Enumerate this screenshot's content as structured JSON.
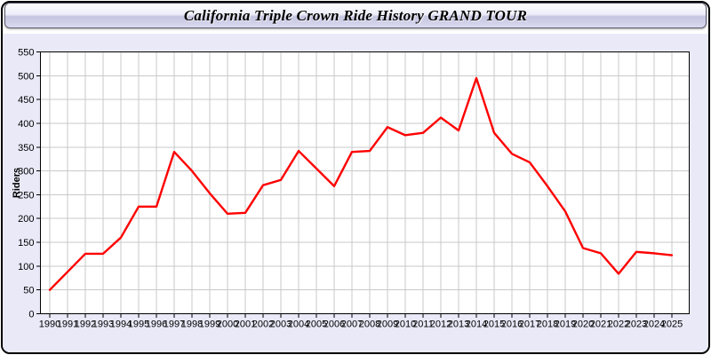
{
  "window": {
    "title": "California Triple Crown Ride History GRAND TOUR"
  },
  "colors": {
    "panel_bg": "#e9e9f8",
    "plot_bg": "#ffffff",
    "grid": "#c9c9c9",
    "axis": "#000000",
    "tick_label": "#000000",
    "line": "#ff0000"
  },
  "chart_data": {
    "type": "line",
    "title": "California Triple Crown Ride History GRAND TOUR",
    "xlabel": "",
    "ylabel": "Riders",
    "ylim": [
      0,
      550
    ],
    "ytick_step": 50,
    "grid": true,
    "legend": "none",
    "categories": [
      "1990",
      "1991",
      "1992",
      "1993",
      "1994",
      "1995",
      "1996",
      "1997",
      "1998",
      "1999",
      "2000",
      "2001",
      "2002",
      "2003",
      "2004",
      "2005",
      "2006",
      "2007",
      "2008",
      "2009",
      "2010",
      "2011",
      "2012",
      "2013",
      "2014",
      "2015",
      "2016",
      "2017",
      "2018",
      "2019",
      "2020",
      "2021",
      "2022",
      "2023",
      "2024",
      "2025"
    ],
    "series": [
      {
        "name": "Riders",
        "color": "#ff0000",
        "values": [
          50,
          88,
          126,
          126,
          160,
          225,
          225,
          340,
          300,
          253,
          210,
          212,
          270,
          281,
          342,
          305,
          268,
          340,
          342,
          392,
          375,
          380,
          412,
          385,
          495,
          380,
          336,
          318,
          268,
          215,
          138,
          127,
          84,
          130,
          127,
          123
        ]
      }
    ]
  }
}
